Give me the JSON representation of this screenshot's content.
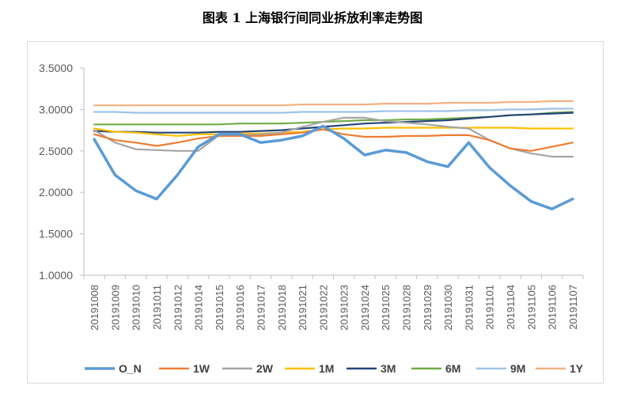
{
  "title": "图表 1  上海银行间同业拆放利率走势图",
  "chart_data": {
    "type": "line",
    "title": "图表 1  上海银行间同业拆放利率走势图",
    "xlabel": "",
    "ylabel": "",
    "ylim": [
      1.0,
      3.5
    ],
    "y_ticks": [
      "1.0000",
      "1.5000",
      "2.0000",
      "2.5000",
      "3.0000",
      "3.5000"
    ],
    "grid": false,
    "legend_position": "bottom",
    "x": [
      "20191008",
      "20191009",
      "20191010",
      "20191011",
      "20191012",
      "20191014",
      "20191015",
      "20191016",
      "20191017",
      "20191018",
      "20191021",
      "20191022",
      "20191023",
      "20191024",
      "20191025",
      "20191028",
      "20191029",
      "20191030",
      "20191031",
      "20191101",
      "20191104",
      "20191105",
      "20191106",
      "20191107"
    ],
    "x_tick_labels": [
      "20191008",
      "20191009",
      "20191010",
      "20191011",
      "20191012",
      "20191014",
      "20191015",
      "20191016",
      "20191017",
      "20191018",
      "20191021",
      "20191022",
      "20191023",
      "20191024",
      "20191025",
      "20191028",
      "20191029",
      "20191030",
      "20191031",
      "20191101",
      "20191104",
      "20191105",
      "20191106",
      "20191107"
    ],
    "series": [
      {
        "name": "O_N",
        "color": "#5b9bd5",
        "values": [
          2.64,
          2.21,
          2.02,
          1.92,
          2.21,
          2.55,
          2.7,
          2.7,
          2.6,
          2.63,
          2.68,
          2.8,
          2.65,
          2.45,
          2.51,
          2.48,
          2.37,
          2.31,
          2.6,
          2.3,
          2.08,
          1.89,
          1.8,
          1.92
        ]
      },
      {
        "name": "1W",
        "color": "#ed7d31",
        "values": [
          2.7,
          2.63,
          2.6,
          2.56,
          2.6,
          2.65,
          2.68,
          2.68,
          2.68,
          2.7,
          2.72,
          2.76,
          2.7,
          2.67,
          2.67,
          2.68,
          2.68,
          2.69,
          2.69,
          2.63,
          2.53,
          2.5,
          2.55,
          2.6
        ]
      },
      {
        "name": "2W",
        "color": "#a5a5a5",
        "values": [
          2.75,
          2.6,
          2.52,
          2.51,
          2.5,
          2.5,
          2.69,
          2.69,
          2.7,
          2.72,
          2.79,
          2.85,
          2.9,
          2.9,
          2.86,
          2.84,
          2.82,
          2.79,
          2.77,
          2.63,
          2.53,
          2.47,
          2.43,
          2.43
        ]
      },
      {
        "name": "1M",
        "color": "#ffc000",
        "values": [
          2.77,
          2.73,
          2.72,
          2.7,
          2.68,
          2.7,
          2.7,
          2.71,
          2.71,
          2.72,
          2.73,
          2.76,
          2.77,
          2.77,
          2.78,
          2.78,
          2.78,
          2.78,
          2.78,
          2.78,
          2.78,
          2.77,
          2.77,
          2.77
        ]
      },
      {
        "name": "3M",
        "color": "#264478",
        "values": [
          2.74,
          2.73,
          2.73,
          2.72,
          2.72,
          2.72,
          2.73,
          2.73,
          2.74,
          2.75,
          2.77,
          2.79,
          2.81,
          2.83,
          2.84,
          2.85,
          2.86,
          2.87,
          2.89,
          2.91,
          2.93,
          2.94,
          2.95,
          2.96
        ]
      },
      {
        "name": "6M",
        "color": "#70ad47",
        "values": [
          2.82,
          2.82,
          2.82,
          2.82,
          2.82,
          2.82,
          2.82,
          2.83,
          2.83,
          2.83,
          2.84,
          2.85,
          2.86,
          2.87,
          2.87,
          2.88,
          2.88,
          2.89,
          2.9,
          2.91,
          2.93,
          2.94,
          2.96,
          2.97
        ]
      },
      {
        "name": "9M",
        "color": "#9dc3e6",
        "values": [
          2.97,
          2.97,
          2.96,
          2.96,
          2.96,
          2.96,
          2.96,
          2.96,
          2.96,
          2.96,
          2.97,
          2.97,
          2.97,
          2.97,
          2.98,
          2.98,
          2.98,
          2.98,
          2.99,
          2.99,
          3.0,
          3.0,
          3.01,
          3.01
        ]
      },
      {
        "name": "1Y",
        "color": "#f4b183",
        "values": [
          3.05,
          3.05,
          3.05,
          3.05,
          3.05,
          3.05,
          3.05,
          3.05,
          3.05,
          3.05,
          3.06,
          3.06,
          3.06,
          3.06,
          3.07,
          3.07,
          3.07,
          3.08,
          3.08,
          3.08,
          3.09,
          3.09,
          3.1,
          3.1
        ]
      }
    ]
  }
}
